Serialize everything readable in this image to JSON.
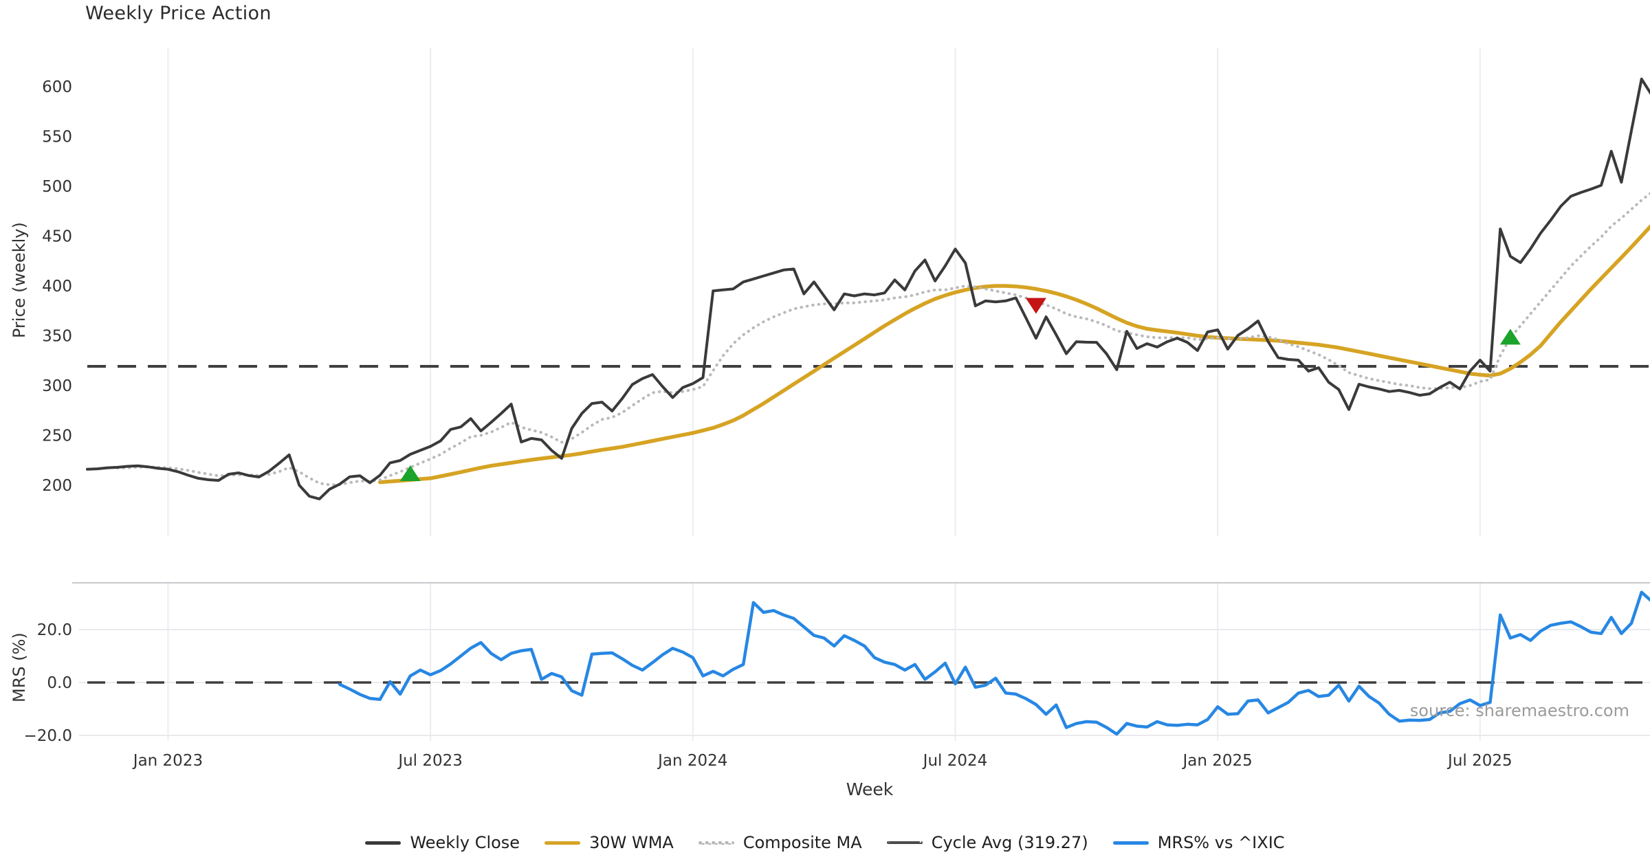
{
  "title": "Weekly Price Action",
  "source_note": "source: sharemaestro.com",
  "colors": {
    "weekly_close": "#3a3a3a",
    "wma_30w": "#d6a323",
    "composite_ma": "#b9b9b9",
    "cycle_avg": "#3f3f3f",
    "mrs_line": "#2787e3",
    "buy_marker": "#1ca32b",
    "sell_marker": "#c41414",
    "grid": "#ededf1",
    "panel_spine": "#c9c9cd"
  },
  "legend": {
    "items": [
      {
        "label": "Weekly Close",
        "style": "solid-dark"
      },
      {
        "label": "30W WMA",
        "style": "solid-gold"
      },
      {
        "label": "Composite MA",
        "style": "dotted-gray"
      },
      {
        "label": "Cycle Avg (319.27)",
        "style": "dashed-dark"
      },
      {
        "label": "MRS% vs ^IXIC",
        "style": "solid-blue"
      }
    ]
  },
  "chart_data": {
    "type": "line",
    "title": "Weekly Price Action",
    "xlabel": "Week",
    "x_unit": "weekly",
    "start_date": "2022-11-07",
    "n_points": 156,
    "x_ticks": [
      {
        "label": "Jan 2023",
        "week": 8
      },
      {
        "label": "Jul 2023",
        "week": 34
      },
      {
        "label": "Jan 2024",
        "week": 60
      },
      {
        "label": "Jul 2024",
        "week": 86
      },
      {
        "label": "Jan 2025",
        "week": 112
      },
      {
        "label": "Jul 2025",
        "week": 138
      }
    ],
    "panels": [
      {
        "name": "price",
        "ylabel": "Price (weekly)",
        "ylim": [
          152,
          639
        ],
        "yticks": [
          200,
          250,
          300,
          350,
          400,
          450,
          500,
          550,
          600
        ],
        "cycle_avg": 319.27,
        "grid": "vertical-only",
        "series": [
          {
            "name": "Weekly Close",
            "color": "#3a3a3a",
            "line": "solid",
            "values": [
              216,
              216.5,
              217.5,
              218,
              219,
              219.5,
              218.5,
              217,
              216,
              213.5,
              210,
              207,
              205.5,
              204.8,
              211,
              212.4,
              209.7,
              208.3,
              214,
              222,
              230.5,
              200,
              189,
              186.3,
              196,
              201,
              208.5,
              209.5,
              202.5,
              210,
              222.5,
              224.8,
              231,
              235,
              239,
              244.5,
              256,
              258.5,
              266.8,
              254.5,
              263,
              272,
              281.4,
              243.4,
              247,
              245.5,
              235,
              227,
              257,
              272,
              282,
              283.4,
              274.5,
              287,
              301,
              307,
              311,
              299,
              288,
              298,
              302,
              308,
              395,
              396,
              397,
              404,
              407,
              410,
              413,
              416,
              417,
              392,
              404,
              390,
              376,
              392,
              390,
              392,
              391,
              393,
              406,
              396,
              415,
              426,
              405,
              420,
              437,
              423,
              380,
              385,
              384,
              385,
              388,
              368,
              347.5,
              369,
              351,
              332,
              344,
              343.5,
              343.4,
              331.7,
              315.9,
              354.5,
              337.2,
              342.1,
              338.6,
              344,
              347.6,
              343.4,
              335.2,
              353.8,
              355.9,
              336.6,
              350.3,
              357,
              364.8,
              344.1,
              328,
              326.2,
              325.5,
              314.5,
              317.9,
              303.4,
              296,
              275.9,
              301.4,
              298.6,
              296.6,
              294,
              295.2,
              293,
              290.3,
              291.7,
              298,
              303.4,
              296.6,
              314.5,
              325.5,
              314.5,
              457.2,
              429.7,
              423.4,
              437.2,
              453,
              466,
              480,
              490,
              493.8,
              497.2,
              501,
              535.2,
              504.1,
              555.9,
              607.6,
              591.7
            ]
          },
          {
            "name": "30W WMA",
            "color": "#d6a323",
            "line": "solid",
            "values": [
              null,
              null,
              null,
              null,
              null,
              null,
              null,
              null,
              null,
              null,
              null,
              null,
              null,
              null,
              null,
              null,
              null,
              null,
              null,
              null,
              null,
              null,
              null,
              null,
              null,
              null,
              null,
              null,
              null,
              203,
              203.8,
              204.5,
              205.3,
              206.2,
              207,
              209,
              211,
              213.2,
              215.4,
              217.5,
              219.5,
              221,
              222.5,
              224,
              225.5,
              226.8,
              228,
              229.2,
              230.5,
              232,
              233.8,
              235.5,
              237,
              238.5,
              240.5,
              242.5,
              244.5,
              246.5,
              248.5,
              250.5,
              252.5,
              255,
              257.5,
              261,
              265,
              270,
              276,
              282,
              288.5,
              295,
              301.5,
              308,
              314.5,
              321,
              327.5,
              334,
              340.5,
              347,
              353.5,
              360,
              366,
              372,
              377.5,
              382.5,
              387,
              390.5,
              393.5,
              396,
              398,
              399.3,
              400,
              400,
              399.5,
              398.5,
              397,
              395,
              392.5,
              389.5,
              386,
              382,
              377.5,
              372.5,
              367.5,
              363,
              359.5,
              357,
              355.5,
              354.3,
              353,
              351.5,
              350,
              348.8,
              348,
              347.5,
              347,
              346.5,
              346,
              345.5,
              345,
              344,
              343,
              342,
              341,
              339.5,
              338,
              336,
              334,
              332,
              330,
              328,
              326,
              324,
              322,
              320,
              318,
              316,
              314,
              312,
              310.8,
              310,
              312,
              317,
              323.5,
              331,
              340,
              352,
              364,
              375,
              386,
              397,
              407.5,
              418,
              428.5,
              439,
              450,
              461
            ]
          },
          {
            "name": "Composite MA",
            "color": "#b9b9b9",
            "line": "dotted",
            "values": [
              null,
              null,
              null,
              217.3,
              217.5,
              218,
              218.4,
              218,
              217.5,
              216.5,
              214.9,
              212.9,
              211.1,
              209.5,
              209.9,
              210.5,
              210.3,
              209.8,
              210.9,
              213.6,
              217.8,
              213.4,
              207.3,
              202,
              200.5,
              200.6,
              202.6,
              204.3,
              203.9,
              205.4,
              209.7,
              213.5,
              217.9,
              222.2,
              226.4,
              230.9,
              237.2,
              242.5,
              248.6,
              250.1,
              253.3,
              258,
              263.2,
              258.2,
              255.4,
              252.9,
              248.5,
              243.1,
              246.6,
              252.9,
              260.2,
              266,
              268.1,
              272.8,
              279.9,
              286.7,
              292.8,
              294.3,
              292.7,
              294,
              296,
              299,
              315,
              330,
              342,
              351,
              358,
              364,
              369,
              373,
              377,
              379,
              381,
              382,
              382,
              383,
              383,
              384,
              385,
              386,
              388,
              389,
              391,
              394,
              396,
              396,
              398,
              400,
              399,
              397,
              395,
              393,
              391,
              388,
              384,
              381,
              377,
              372,
              369,
              367,
              364,
              360,
              355,
              353,
              351,
              349,
              348,
              348,
              348,
              348,
              346,
              347,
              348,
              347,
              347,
              348,
              350,
              349,
              346,
              342,
              339,
              335,
              331,
              326,
              320,
              313,
              310,
              307,
              305,
              303,
              301,
              300,
              298,
              297,
              297,
              298,
              298,
              300,
              304,
              306,
              330,
              348,
              360,
              372,
              384,
              396,
              408,
              420,
              430,
              440,
              449,
              460,
              468,
              477,
              486,
              494
            ]
          }
        ],
        "signals": [
          {
            "type": "buy",
            "week": 32,
            "price": 211
          },
          {
            "type": "sell",
            "week": 94,
            "price": 381
          },
          {
            "type": "buy",
            "week": 141,
            "price": 348
          }
        ]
      },
      {
        "name": "mrs",
        "ylabel": "MRS (%)",
        "ylim": [
          -24,
          37
        ],
        "yticks": [
          20.0,
          0.0,
          -20.0
        ],
        "ytick_labels": [
          "20.0",
          "0.0",
          "−20.0"
        ],
        "zero_dashed_line": 0.0,
        "series": [
          {
            "name": "MRS% vs ^IXIC",
            "color": "#2787e3",
            "line": "solid",
            "values": [
              null,
              null,
              null,
              null,
              null,
              null,
              null,
              null,
              null,
              null,
              null,
              null,
              null,
              null,
              null,
              null,
              null,
              null,
              null,
              null,
              null,
              null,
              null,
              null,
              null,
              -0.7,
              -2.5,
              -4.5,
              -6,
              -6.4,
              0.3,
              -4.4,
              2.5,
              4.7,
              2.9,
              4.5,
              7,
              10,
              13,
              15.1,
              11,
              8.6,
              11,
              12,
              12.5,
              1.2,
              3.4,
              2.1,
              -3.1,
              -4.8,
              10.7,
              11,
              11.2,
              9,
              6.5,
              4.7,
              7.5,
              10.5,
              12.9,
              11.5,
              9.4,
              2.5,
              4.2,
              2.5,
              5,
              6.8,
              30.2,
              26.5,
              27.2,
              25.5,
              24.2,
              21,
              17.8,
              16.8,
              13.8,
              17.7,
              15.9,
              13.8,
              9.4,
              7.7,
              6.8,
              4.7,
              6.8,
              1.2,
              4,
              7.3,
              -0.5,
              5.8,
              -1.8,
              -1,
              1.6,
              -4,
              -4.4,
              -6.1,
              -8.3,
              -12,
              -8.5,
              -17,
              -15.5,
              -14.8,
              -15,
              -17,
              -19.5,
              -15.5,
              -16.5,
              -16.8,
              -14.8,
              -16,
              -16.2,
              -15.8,
              -16,
              -14,
              -9.2,
              -12,
              -11.8,
              -7,
              -6.6,
              -11.5,
              -9.5,
              -7.5,
              -4,
              -3,
              -5.3,
              -4.8,
              -1,
              -7,
              -1.4,
              -5.3,
              -7.8,
              -12,
              -14.6,
              -14.2,
              -14.3,
              -14,
              -11.5,
              -10.9,
              -8,
              -6.6,
              -8.7,
              -7.5,
              25.5,
              16.8,
              18.1,
              15.9,
              19.4,
              21.6,
              22.4,
              22.9,
              21.1,
              19,
              18.5,
              24.6,
              18.5,
              22.4,
              34.1,
              30.7
            ]
          }
        ]
      }
    ]
  }
}
